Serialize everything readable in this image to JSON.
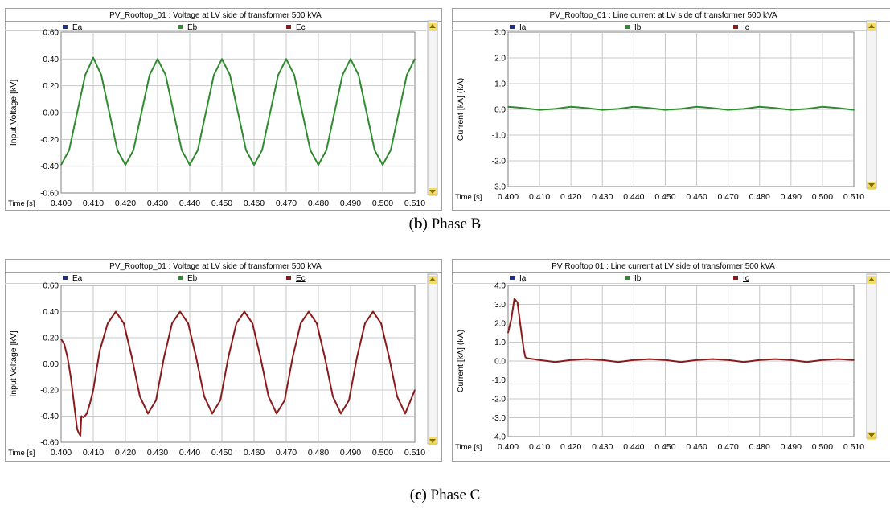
{
  "captions": [
    {
      "letter": "b",
      "rest": ") Phase B"
    },
    {
      "letter": "c",
      "rest": ") Phase C"
    }
  ],
  "colors": {
    "ea": "#1f2f8a",
    "eb": "#2e8b2e",
    "ec": "#8b1a1a",
    "frame": "#a0a0a0",
    "grid": "#c8c8c8",
    "scroll": "#f0c800"
  },
  "chart_data": [
    {
      "type": "line",
      "title": "PV_Rooftop_01 : Voltage at LV side of transformer 500 kVA",
      "xlabel": "Time [s]",
      "ylabel": "Input Voltage [kV]",
      "xlim": [
        0.4,
        0.51
      ],
      "ylim": [
        -0.6,
        0.6
      ],
      "x_ticks": [
        "0.400",
        "0.410",
        "0.420",
        "0.430",
        "0.440",
        "0.450",
        "0.460",
        "0.470",
        "0.480",
        "0.490",
        "0.500",
        "0.510"
      ],
      "y_ticks": [
        "0.60",
        "0.40",
        "0.20",
        "0.00",
        "-0.20",
        "-0.40",
        "-0.60"
      ],
      "legend": [
        "Ea",
        "Eb",
        "Ec"
      ],
      "legend_underlined": "Eb",
      "series": [
        {
          "name": "Eb",
          "color_key": "eb",
          "x": [
            0.4,
            0.4025,
            0.405,
            0.4075,
            0.41,
            0.4125,
            0.415,
            0.4175,
            0.42,
            0.4225,
            0.425,
            0.4275,
            0.43,
            0.4325,
            0.435,
            0.4375,
            0.44,
            0.4425,
            0.445,
            0.4475,
            0.45,
            0.4525,
            0.455,
            0.4575,
            0.46,
            0.4625,
            0.465,
            0.4675,
            0.47,
            0.4725,
            0.475,
            0.4775,
            0.48,
            0.4825,
            0.485,
            0.4875,
            0.49,
            0.4925,
            0.495,
            0.4975,
            0.5,
            0.5025,
            0.505,
            0.5075,
            0.51
          ],
          "y": [
            -0.39,
            -0.28,
            0.0,
            0.28,
            0.41,
            0.28,
            0.0,
            -0.28,
            -0.39,
            -0.28,
            0.0,
            0.28,
            0.4,
            0.28,
            0.0,
            -0.28,
            -0.39,
            -0.28,
            0.0,
            0.28,
            0.4,
            0.28,
            0.0,
            -0.28,
            -0.39,
            -0.28,
            0.0,
            0.28,
            0.4,
            0.28,
            0.0,
            -0.28,
            -0.39,
            -0.28,
            0.0,
            0.28,
            0.4,
            0.28,
            0.0,
            -0.28,
            -0.39,
            -0.28,
            0.0,
            0.28,
            0.4
          ]
        }
      ]
    },
    {
      "type": "line",
      "title": "PV_Rooftop_01 : Line current at LV side of transformer 500 kVA",
      "xlabel": "Time [s]",
      "ylabel": "Current [kA] (kA)",
      "xlim": [
        0.4,
        0.51
      ],
      "ylim": [
        -3.0,
        3.0
      ],
      "x_ticks": [
        "0.400",
        "0.410",
        "0.420",
        "0.430",
        "0.440",
        "0.450",
        "0.460",
        "0.470",
        "0.480",
        "0.490",
        "0.500",
        "0.510"
      ],
      "y_ticks": [
        "3.0",
        "2.0",
        "1.0",
        "0.0",
        "-1.0",
        "-2.0",
        "-3.0"
      ],
      "legend": [
        "Ia",
        "Ib",
        "Ic"
      ],
      "legend_underlined": "Ib",
      "series": [
        {
          "name": "Ib",
          "color_key": "eb",
          "x": [
            0.4,
            0.405,
            0.41,
            0.415,
            0.42,
            0.425,
            0.43,
            0.435,
            0.44,
            0.445,
            0.45,
            0.455,
            0.46,
            0.465,
            0.47,
            0.475,
            0.48,
            0.485,
            0.49,
            0.495,
            0.5,
            0.505,
            0.51
          ],
          "y": [
            0.1,
            0.05,
            -0.02,
            0.02,
            0.1,
            0.05,
            -0.02,
            0.02,
            0.1,
            0.05,
            -0.02,
            0.02,
            0.1,
            0.05,
            -0.02,
            0.02,
            0.1,
            0.05,
            -0.02,
            0.02,
            0.1,
            0.05,
            -0.02
          ]
        }
      ]
    },
    {
      "type": "line",
      "title": "PV_Rooftop_01 : Voltage at LV side of transformer 500 kVA",
      "xlabel": "Time [s]",
      "ylabel": "Input Voltage [kV]",
      "xlim": [
        0.4,
        0.51
      ],
      "ylim": [
        -0.6,
        0.6
      ],
      "x_ticks": [
        "0.400",
        "0.410",
        "0.420",
        "0.430",
        "0.440",
        "0.450",
        "0.460",
        "0.470",
        "0.480",
        "0.490",
        "0.500",
        "0.510"
      ],
      "y_ticks": [
        "0.60",
        "0.40",
        "0.20",
        "0.00",
        "-0.20",
        "-0.40",
        "-0.60"
      ],
      "legend": [
        "Ea",
        "Eb",
        "Ec"
      ],
      "legend_underlined": "Ec",
      "series": [
        {
          "name": "Ec",
          "color_key": "ec",
          "x": [
            0.4,
            0.401,
            0.402,
            0.403,
            0.404,
            0.405,
            0.4055,
            0.406,
            0.4063,
            0.407,
            0.408,
            0.409,
            0.41,
            0.412,
            0.4145,
            0.417,
            0.4195,
            0.422,
            0.4245,
            0.427,
            0.4295,
            0.432,
            0.4345,
            0.437,
            0.4395,
            0.442,
            0.4445,
            0.447,
            0.4495,
            0.452,
            0.4545,
            0.457,
            0.4595,
            0.462,
            0.4645,
            0.467,
            0.4695,
            0.472,
            0.4745,
            0.477,
            0.4795,
            0.482,
            0.4845,
            0.487,
            0.4895,
            0.492,
            0.4945,
            0.497,
            0.4995,
            0.502,
            0.5045,
            0.507,
            0.51
          ],
          "y": [
            0.19,
            0.15,
            0.05,
            -0.1,
            -0.3,
            -0.5,
            -0.53,
            -0.55,
            -0.4,
            -0.41,
            -0.38,
            -0.3,
            -0.2,
            0.1,
            0.31,
            0.4,
            0.31,
            0.05,
            -0.25,
            -0.38,
            -0.28,
            0.05,
            0.31,
            0.4,
            0.31,
            0.05,
            -0.25,
            -0.38,
            -0.28,
            0.05,
            0.31,
            0.4,
            0.31,
            0.05,
            -0.25,
            -0.38,
            -0.28,
            0.05,
            0.31,
            0.4,
            0.31,
            0.05,
            -0.25,
            -0.38,
            -0.28,
            0.05,
            0.31,
            0.4,
            0.31,
            0.05,
            -0.25,
            -0.38,
            -0.2
          ]
        }
      ]
    },
    {
      "type": "line",
      "title": "PV  Rooftop  01 : Line current at LV side of transformer 500 kVA",
      "xlabel": "Time [s]",
      "ylabel": "Current [kA] (kA)",
      "xlim": [
        0.4,
        0.51
      ],
      "ylim": [
        -4.0,
        4.0
      ],
      "x_ticks": [
        "0.400",
        "0.410",
        "0.420",
        "0.430",
        "0.440",
        "0.450",
        "0.460",
        "0.470",
        "0.480",
        "0.490",
        "0.500",
        "0.510"
      ],
      "y_ticks": [
        "4.0",
        "3.0",
        "2.0",
        "1.0",
        "0.0",
        "-1.0",
        "-2.0",
        "-3.0",
        "-4.0"
      ],
      "legend": [
        "Ia",
        "Ib",
        "Ic"
      ],
      "legend_underlined": "Ic",
      "series": [
        {
          "name": "Ic",
          "color_key": "ec",
          "x": [
            0.4,
            0.401,
            0.402,
            0.403,
            0.404,
            0.405,
            0.4055,
            0.406,
            0.41,
            0.415,
            0.42,
            0.425,
            0.43,
            0.435,
            0.44,
            0.445,
            0.45,
            0.455,
            0.46,
            0.465,
            0.47,
            0.475,
            0.48,
            0.485,
            0.49,
            0.495,
            0.5,
            0.505,
            0.51
          ],
          "y": [
            1.5,
            2.2,
            3.3,
            3.1,
            1.8,
            0.6,
            0.2,
            0.15,
            0.05,
            -0.05,
            0.05,
            0.1,
            0.05,
            -0.05,
            0.05,
            0.1,
            0.05,
            -0.05,
            0.05,
            0.1,
            0.05,
            -0.05,
            0.05,
            0.1,
            0.05,
            -0.05,
            0.05,
            0.1,
            0.05
          ]
        }
      ]
    }
  ]
}
